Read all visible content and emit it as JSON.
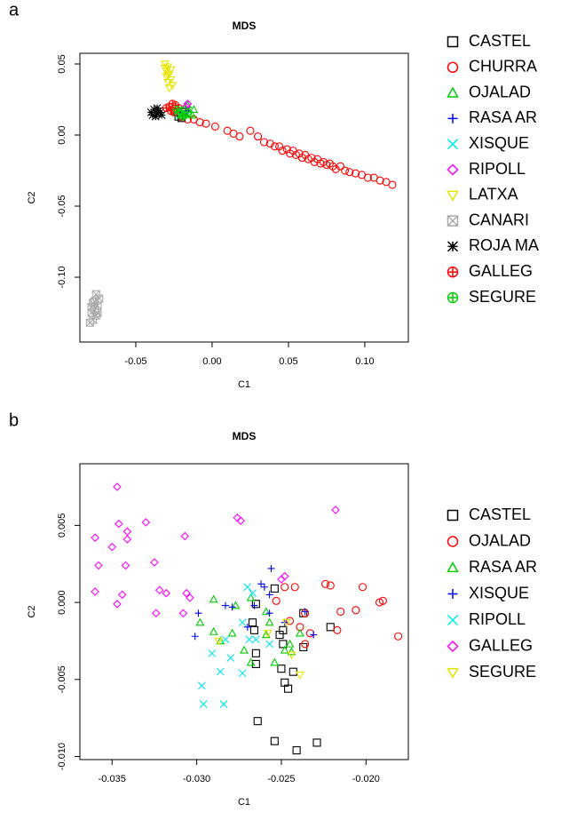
{
  "chart_data": [
    {
      "type": "scatter",
      "panel": "a",
      "title": "MDS",
      "x_label": "C1",
      "y_label": "C2",
      "xlim": [
        -0.0866,
        0.1285
      ],
      "ylim": [
        -0.1456,
        0.0575
      ],
      "xticks": [
        {
          "value": -0.05,
          "label": "-0.05"
        },
        {
          "value": 0,
          "label": "0.00"
        },
        {
          "value": 0.05,
          "label": "0.05"
        },
        {
          "value": 0.1,
          "label": "0.10"
        }
      ],
      "yticks": [
        {
          "value": -0.1,
          "label": "-0.10"
        },
        {
          "value": -0.05,
          "label": "-0.05"
        },
        {
          "value": 0,
          "label": "0.00"
        },
        {
          "value": 0.05,
          "label": "0.05"
        }
      ],
      "legend": "right",
      "series": [
        {
          "name": "CASTEL",
          "color": "#000000",
          "marker": "square",
          "x": [
            -0.022,
            -0.02,
            -0.018
          ],
          "values": [
            0.013,
            0.012,
            0.016
          ]
        },
        {
          "name": "CHURRA",
          "color": "#ff0000",
          "marker": "circle",
          "x": [
            -0.024,
            -0.02,
            -0.016,
            -0.012,
            -0.008,
            -0.004,
            0.002,
            0.01,
            0.014,
            0.018,
            0.025,
            0.03,
            0.034,
            0.038,
            0.041,
            0.044,
            0.046,
            0.049,
            0.051,
            0.053,
            0.055,
            0.057,
            0.059,
            0.061,
            0.063,
            0.065,
            0.067,
            0.069,
            0.071,
            0.073,
            0.075,
            0.077,
            0.079,
            0.081,
            0.084,
            0.087,
            0.09,
            0.094,
            0.098,
            0.102,
            0.106,
            0.11,
            0.114,
            0.118
          ],
          "values": [
            0.016,
            0.013,
            0.011,
            0.011,
            0.009,
            0.008,
            0.006,
            0.003,
            0.001,
            -0.001,
            0.003,
            -0.001,
            -0.005,
            -0.006,
            -0.008,
            -0.008,
            -0.011,
            -0.01,
            -0.013,
            -0.011,
            -0.014,
            -0.013,
            -0.016,
            -0.014,
            -0.017,
            -0.016,
            -0.019,
            -0.017,
            -0.02,
            -0.019,
            -0.021,
            -0.02,
            -0.022,
            -0.024,
            -0.022,
            -0.025,
            -0.026,
            -0.027,
            -0.028,
            -0.03,
            -0.03,
            -0.032,
            -0.033,
            -0.035
          ]
        },
        {
          "name": "OJALAD",
          "color": "#00cc00",
          "marker": "triangle",
          "x": [
            -0.012,
            -0.015,
            -0.018,
            -0.02,
            -0.016,
            -0.013
          ],
          "values": [
            0.018,
            0.015,
            0.019,
            0.014,
            0.021,
            0.014
          ]
        },
        {
          "name": "RASA AR",
          "color": "#0000ff",
          "marker": "plus",
          "x": [
            -0.02,
            -0.017,
            -0.023
          ],
          "values": [
            0.016,
            0.017,
            0.015
          ]
        },
        {
          "name": "XISQUE",
          "color": "#00e5ee",
          "marker": "cross",
          "x": [
            -0.021,
            -0.019,
            -0.024
          ],
          "values": [
            0.014,
            0.016,
            0.016
          ]
        },
        {
          "name": "RIPOLL",
          "color": "#ff00ff",
          "marker": "diamond",
          "x": [
            -0.016,
            -0.017
          ],
          "values": [
            0.022,
            0.02
          ]
        },
        {
          "name": "LATXA",
          "color": "#e5e500",
          "marker": "triangle-down",
          "x": [
            -0.031,
            -0.029,
            -0.03,
            -0.028,
            -0.03,
            -0.027,
            -0.029,
            -0.026,
            -0.028,
            -0.031,
            -0.027,
            -0.029
          ],
          "values": [
            0.05,
            0.048,
            0.045,
            0.043,
            0.041,
            0.039,
            0.037,
            0.035,
            0.033,
            0.047,
            0.046,
            0.042
          ]
        },
        {
          "name": "CANARI",
          "color": "#aaaaaa",
          "marker": "square-x",
          "x": [
            -0.076,
            -0.074,
            -0.078,
            -0.075,
            -0.077,
            -0.079,
            -0.076,
            -0.078,
            -0.08,
            -0.077,
            -0.075,
            -0.079
          ],
          "values": [
            -0.112,
            -0.115,
            -0.118,
            -0.12,
            -0.123,
            -0.125,
            -0.127,
            -0.13,
            -0.132,
            -0.117,
            -0.125,
            -0.121
          ]
        },
        {
          "name": "ROJA MA",
          "color": "#000000",
          "marker": "asterisk",
          "x": [
            -0.04,
            -0.038,
            -0.036,
            -0.037,
            -0.035,
            -0.039,
            -0.034,
            -0.036,
            -0.033
          ],
          "values": [
            0.016,
            0.018,
            0.015,
            0.013,
            0.017,
            0.014,
            0.016,
            0.019,
            0.014
          ]
        },
        {
          "name": "GALLEG",
          "color": "#ff0000",
          "marker": "circle-plus",
          "x": [
            -0.028,
            -0.026,
            -0.03,
            -0.024,
            -0.027,
            -0.022,
            -0.025
          ],
          "values": [
            0.02,
            0.022,
            0.019,
            0.021,
            0.017,
            0.019,
            0.016
          ]
        },
        {
          "name": "SEGURE",
          "color": "#00cc00",
          "marker": "circle-plus",
          "x": [
            -0.022,
            -0.02,
            -0.018,
            -0.016,
            -0.023,
            -0.019
          ],
          "values": [
            0.015,
            0.017,
            0.014,
            0.016,
            0.018,
            0.013
          ]
        }
      ]
    },
    {
      "type": "scatter",
      "panel": "b",
      "title": "MDS",
      "x_label": "C1",
      "y_label": "C2",
      "xlim": [
        -0.0369,
        -0.0175
      ],
      "ylim": [
        -0.0102,
        0.009
      ],
      "xticks": [
        {
          "value": -0.035,
          "label": "-0.035"
        },
        {
          "value": -0.03,
          "label": "-0.030"
        },
        {
          "value": -0.025,
          "label": "-0.025"
        },
        {
          "value": -0.02,
          "label": "-0.020"
        }
      ],
      "yticks": [
        {
          "value": -0.01,
          "label": "-0.010"
        },
        {
          "value": -0.005,
          "label": "-0.005"
        },
        {
          "value": 0,
          "label": "0.000"
        },
        {
          "value": 0.005,
          "label": "0.005"
        }
      ],
      "legend": "right",
      "series": [
        {
          "name": "CASTEL",
          "color": "#000000",
          "marker": "square",
          "x": [
            -0.0254,
            -0.0265,
            -0.0267,
            -0.0266,
            -0.0249,
            -0.0251,
            -0.0249,
            -0.0237,
            -0.0237,
            -0.0265,
            -0.0265,
            -0.025,
            -0.0243,
            -0.0248,
            -0.0246,
            -0.0264,
            -0.0254,
            -0.0241,
            -0.0229,
            -0.0221
          ],
          "values": [
            0.0009,
            -0.0001,
            -0.0013,
            -0.0018,
            -0.0018,
            -0.0021,
            -0.0027,
            -0.0007,
            -0.0029,
            -0.0033,
            -0.004,
            -0.0043,
            -0.0045,
            -0.0052,
            -0.0056,
            -0.0077,
            -0.009,
            -0.0096,
            -0.0091,
            -0.0016
          ]
        },
        {
          "name": "OJALAD",
          "color": "#ff0000",
          "marker": "circle",
          "x": [
            -0.0242,
            -0.0248,
            -0.0253,
            -0.0236,
            -0.0245,
            -0.0239,
            -0.0233,
            -0.0224,
            -0.0221,
            -0.0202,
            -0.0206,
            -0.0192,
            -0.019,
            -0.0181,
            -0.0215,
            -0.0217,
            -0.0236
          ],
          "values": [
            0.001,
            0.001,
            0.0001,
            -0.0007,
            -0.0012,
            -0.0016,
            -0.002,
            0.0012,
            0.0011,
            0.001,
            -0.0005,
            0.0,
            0.0001,
            -0.0022,
            -0.0006,
            -0.0018,
            -0.0027
          ]
        },
        {
          "name": "RASA AR",
          "color": "#00cc00",
          "marker": "triangle",
          "x": [
            -0.029,
            -0.0277,
            -0.0268,
            -0.0259,
            -0.0257,
            -0.0298,
            -0.029,
            -0.0286,
            -0.0279,
            -0.0272,
            -0.0268,
            -0.0259,
            -0.0254,
            -0.0248,
            -0.0244,
            -0.0239,
            -0.0245
          ],
          "values": [
            0.0002,
            -0.0002,
            0.0003,
            -0.0006,
            -0.0013,
            -0.0013,
            -0.0019,
            -0.0025,
            -0.002,
            -0.0031,
            -0.0039,
            -0.0021,
            -0.0039,
            -0.0031,
            -0.0032,
            -0.002,
            -0.0027
          ]
        },
        {
          "name": "XISQUE",
          "color": "#0000ff",
          "marker": "plus",
          "x": [
            -0.0256,
            -0.0262,
            -0.026,
            -0.0283,
            -0.0279,
            -0.0266,
            -0.0299,
            -0.0301,
            -0.0257,
            -0.0248,
            -0.0236,
            -0.0231,
            -0.0257,
            -0.027
          ],
          "values": [
            0.0022,
            0.0012,
            0.001,
            -0.0002,
            -0.0003,
            -0.0002,
            -0.0007,
            -0.0022,
            -0.0007,
            -0.0013,
            -0.0006,
            -0.0021,
            0.0005,
            -0.0016
          ]
        },
        {
          "name": "RIPOLL",
          "color": "#00e5ee",
          "marker": "cross",
          "x": [
            -0.0296,
            -0.0284,
            -0.0297,
            -0.0286,
            -0.0291,
            -0.028,
            -0.0273,
            -0.0269,
            -0.0265,
            -0.0273,
            -0.027,
            -0.0267,
            -0.0283,
            -0.0257
          ],
          "values": [
            -0.0066,
            -0.0066,
            -0.0054,
            -0.0045,
            -0.0033,
            -0.0036,
            -0.0046,
            -0.0024,
            -0.0024,
            -0.0013,
            0.001,
            0.0006,
            -0.0024,
            -0.0027
          ]
        },
        {
          "name": "GALLEG",
          "color": "#ff00ff",
          "marker": "diamond",
          "x": [
            -0.0347,
            -0.036,
            -0.0346,
            -0.033,
            -0.035,
            -0.0341,
            -0.0341,
            -0.0358,
            -0.0342,
            -0.0325,
            -0.0307,
            -0.0276,
            -0.0274,
            -0.0218,
            -0.036,
            -0.0344,
            -0.0347,
            -0.0322,
            -0.0318,
            -0.0306,
            -0.0304,
            -0.0324,
            -0.0308,
            -0.0248,
            -0.025
          ],
          "values": [
            0.0075,
            0.0042,
            0.0051,
            0.0052,
            0.0036,
            0.0046,
            0.0041,
            0.0024,
            0.0024,
            0.0026,
            0.0043,
            0.0055,
            0.0053,
            0.006,
            0.0007,
            0.0005,
            -0.0001,
            0.0008,
            0.0006,
            0.0006,
            0.0003,
            -0.0007,
            -0.0007,
            0.0017,
            0.0015
          ]
        },
        {
          "name": "SEGURE",
          "color": "#e5e500",
          "marker": "triangle-down",
          "x": [
            -0.0287,
            -0.0247,
            -0.0244,
            -0.0239,
            -0.0258
          ],
          "values": [
            -0.0025,
            -0.0013,
            -0.0034,
            -0.0047,
            -0.002
          ]
        }
      ]
    }
  ]
}
